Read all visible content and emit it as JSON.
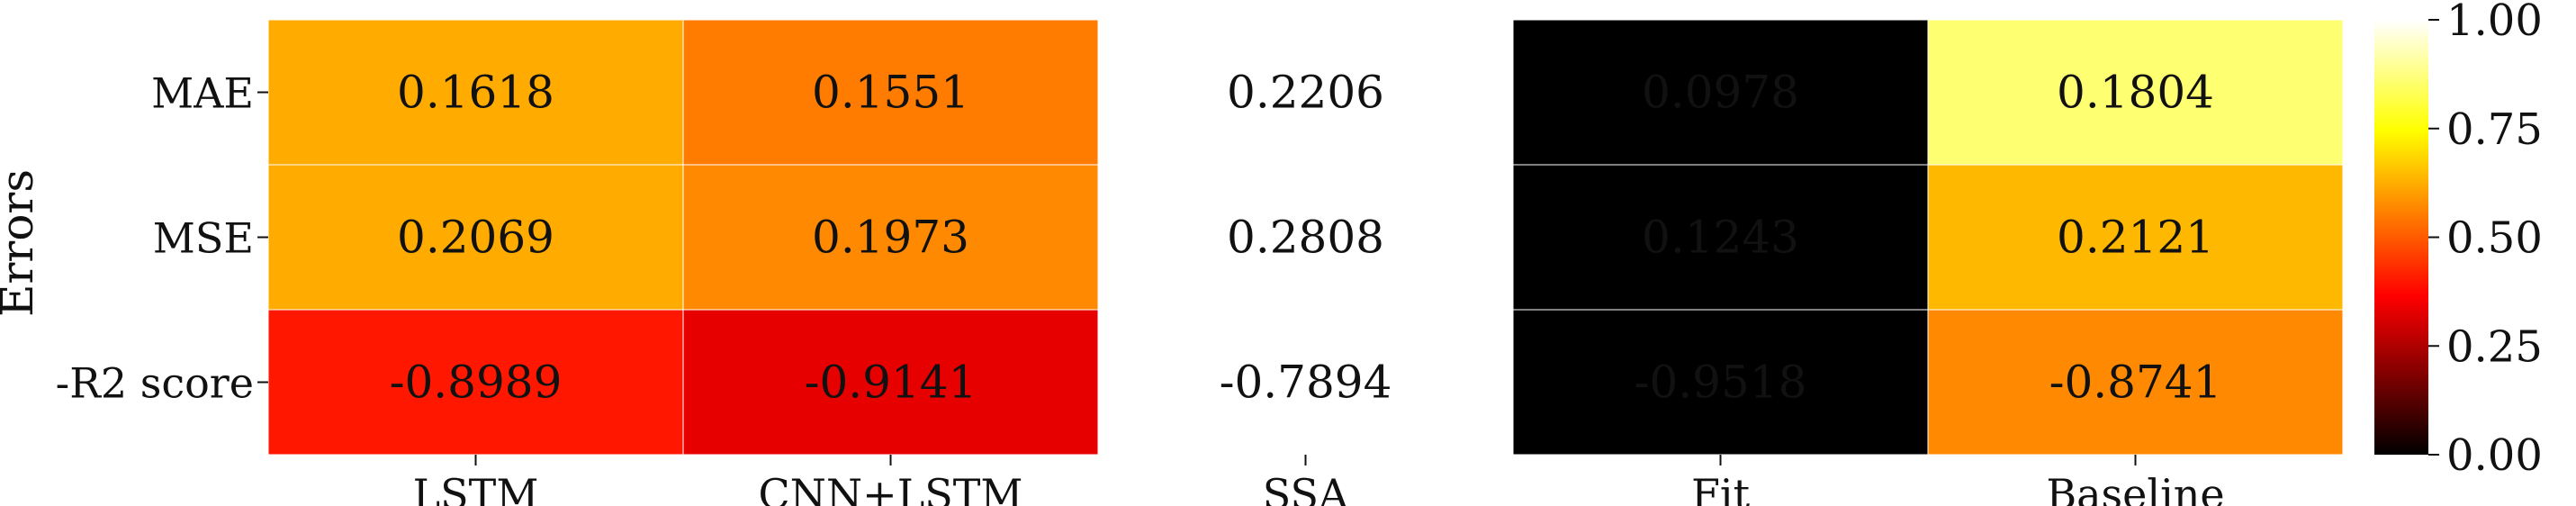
{
  "chart_data": {
    "type": "heatmap",
    "ylabel": "Errors",
    "rows": [
      "MAE",
      "MSE",
      "-R2 score"
    ],
    "columns": [
      "LSTM",
      "CNN+LSTM",
      "SSA",
      "Fit",
      "Baseline"
    ],
    "value_labels": [
      [
        "0.1618",
        "0.1551",
        "0.2206",
        "0.0978",
        "0.1804"
      ],
      [
        "0.2069",
        "0.1973",
        "0.2808",
        "0.1243",
        "0.2121"
      ],
      [
        "-0.8989",
        "-0.9141",
        "-0.7894",
        "-0.9518",
        "-0.8741"
      ]
    ],
    "color_levels": [
      [
        0.62,
        0.55,
        null,
        0.0,
        0.86
      ],
      [
        0.62,
        0.57,
        null,
        0.0,
        0.64
      ],
      [
        0.4,
        0.33,
        null,
        0.0,
        0.57
      ]
    ],
    "colormap": "hot",
    "colorbar": {
      "range": [
        0,
        1
      ],
      "tick_labels": [
        "0.00",
        "0.25",
        "0.50",
        "0.75",
        "1.00"
      ]
    }
  }
}
